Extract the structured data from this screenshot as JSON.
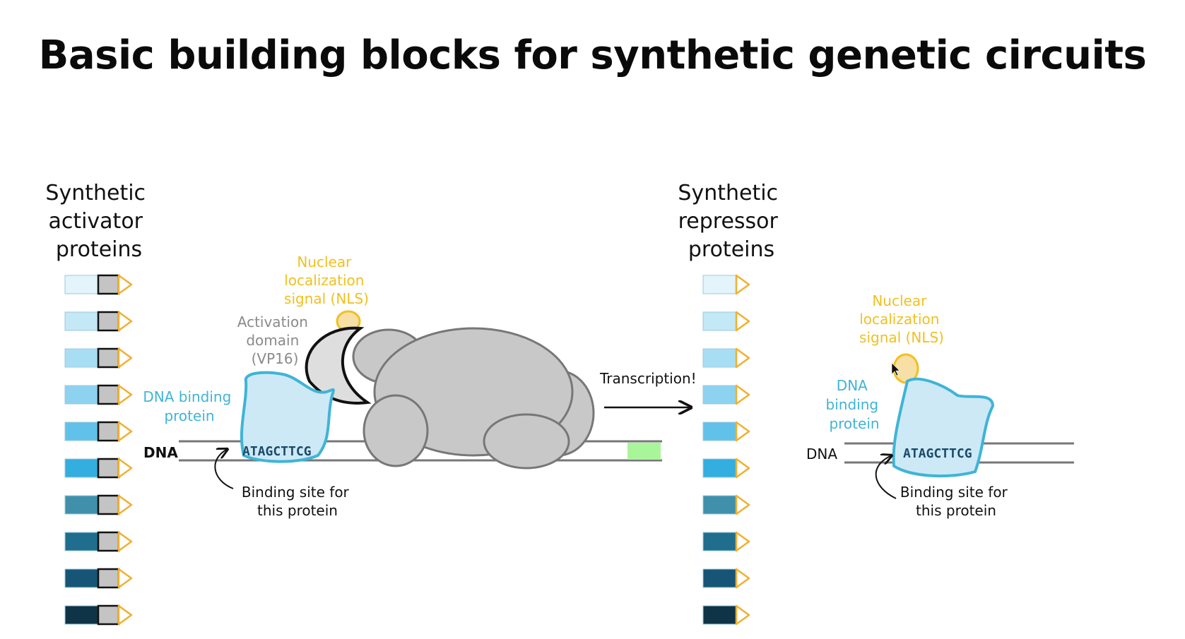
{
  "title": "Basic building blocks for synthetic genetic circuits",
  "activator_heading": [
    "Synthetic",
    "activator",
    "proteins"
  ],
  "repressor_heading": [
    "Synthetic",
    "repressor",
    "proteins"
  ],
  "left_panel": {
    "nls_label": [
      "Nuclear",
      "localization",
      "signal (NLS)"
    ],
    "activation_label": [
      "Activation",
      "domain",
      "(VP16)"
    ],
    "dna_binding_label": [
      "DNA binding",
      "protein"
    ],
    "dna_label": "DNA",
    "binding_sequence": "ATAGCTTCG",
    "binding_site_label": [
      "Binding site for",
      "this protein"
    ],
    "transcription_label": "Transcription!"
  },
  "right_panel": {
    "nls_label": [
      "Nuclear",
      "localization",
      "signal (NLS)"
    ],
    "dna_binding_label": [
      "DNA",
      "binding",
      "protein"
    ],
    "dna_label": "DNA",
    "binding_sequence": "ATAGCTTCG",
    "binding_site_label": [
      "Binding site for",
      "this protein"
    ]
  },
  "colors": {
    "protein_shades": [
      "#e3f4fb",
      "#c4e8f6",
      "#a8def4",
      "#8dd3ef",
      "#62c1e8",
      "#33aedf",
      "#4190ab",
      "#1f6e8e",
      "#165575",
      "#0f3447"
    ],
    "nls": "#f0c020",
    "binding_protein": "#cde9f6",
    "binding_outline": "#3fb4d6",
    "polymerase": "#c8c8c8",
    "gene": "#a9f59a"
  }
}
